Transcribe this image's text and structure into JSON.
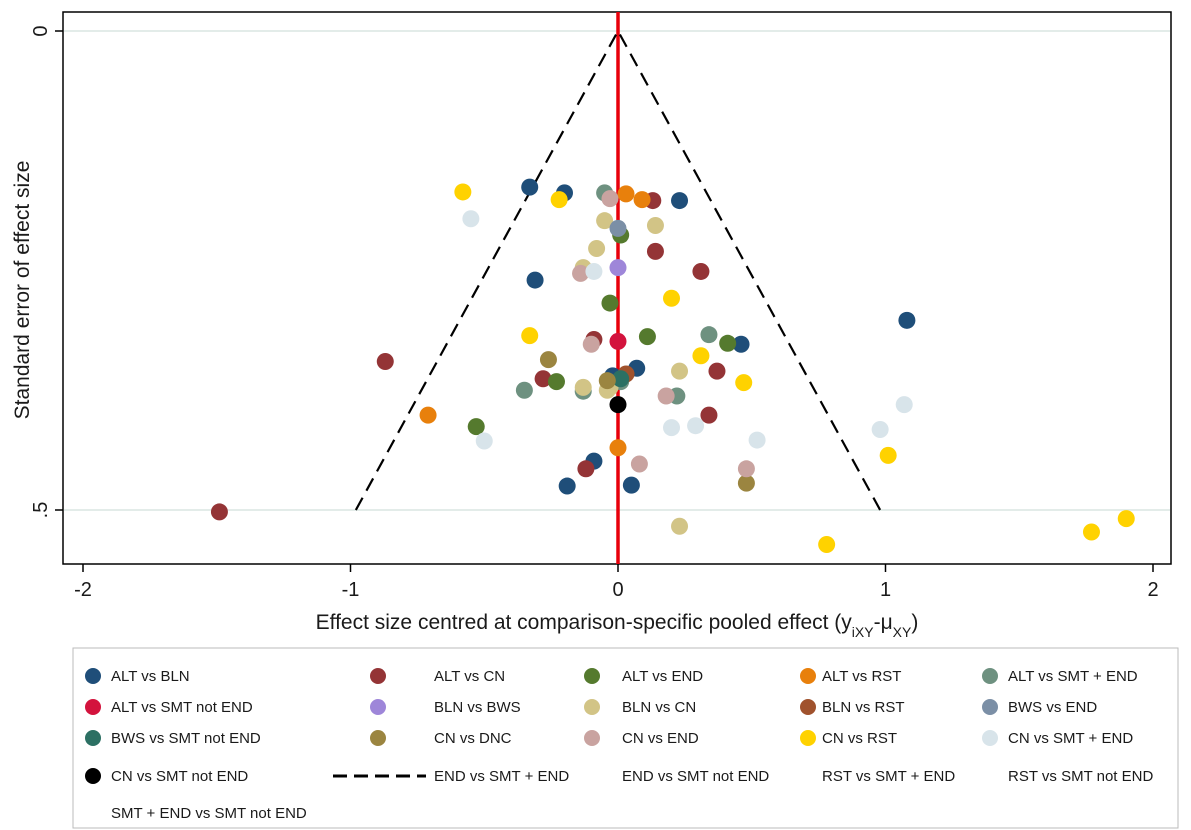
{
  "chart_data": {
    "type": "scatter",
    "xlabel": "Effect size centred at comparison-specific pooled effect (y",
    "xlabel_sub1": "iXY",
    "xlabel_mid": "-μ",
    "xlabel_sub2": "XY",
    "xlabel_end": ")",
    "ylabel": "Standard error of effect size",
    "xlim": [
      -2.1,
      2.1
    ],
    "ylim": [
      0,
      0.56
    ],
    "y_reversed": true,
    "xticks": [
      {
        "value": -2,
        "label": "-2"
      },
      {
        "value": -1,
        "label": "-1"
      },
      {
        "value": 0,
        "label": "0"
      },
      {
        "value": 1,
        "label": "1"
      },
      {
        "value": 2,
        "label": "2"
      }
    ],
    "yticks": [
      {
        "value": 0,
        "label": "0"
      },
      {
        "value": 0.5,
        "label": ".5"
      }
    ],
    "grid": "horizontal",
    "reference_line": {
      "x": 0,
      "color": "#e8000b"
    },
    "funnel": {
      "apex": [
        0,
        0
      ],
      "base_left": [
        -0.98,
        0.5
      ],
      "base_right": [
        0.98,
        0.5
      ],
      "style": "dashed"
    },
    "legend_position": "bottom",
    "series": [
      {
        "name": "ALT vs BLN",
        "color": "#1f4e79",
        "points": [
          [
            -0.33,
            0.163
          ],
          [
            -0.2,
            0.169
          ],
          [
            0.23,
            0.177
          ],
          [
            -0.31,
            0.26
          ],
          [
            1.08,
            0.302
          ],
          [
            0.46,
            0.327
          ],
          [
            0.07,
            0.352
          ],
          [
            -0.09,
            0.449
          ],
          [
            -0.19,
            0.475
          ],
          [
            0.05,
            0.474
          ],
          [
            -0.02,
            0.36
          ]
        ]
      },
      {
        "name": "ALT vs CN",
        "color": "#943436",
        "points": [
          [
            0.13,
            0.177
          ],
          [
            0.14,
            0.23
          ],
          [
            0.31,
            0.251
          ],
          [
            -0.09,
            0.322
          ],
          [
            -0.87,
            0.345
          ],
          [
            -0.28,
            0.363
          ],
          [
            0.37,
            0.355
          ],
          [
            0.34,
            0.401
          ],
          [
            -0.12,
            0.457
          ],
          [
            -1.49,
            0.502
          ]
        ]
      },
      {
        "name": "ALT vs END",
        "color": "#557a2e",
        "points": [
          [
            0.01,
            0.213
          ],
          [
            -0.03,
            0.284
          ],
          [
            0.11,
            0.319
          ],
          [
            0.41,
            0.326
          ],
          [
            -0.23,
            0.366
          ],
          [
            -0.53,
            0.413
          ]
        ]
      },
      {
        "name": "ALT vs RST",
        "color": "#e8800c",
        "points": [
          [
            0.03,
            0.17
          ],
          [
            0.09,
            0.176
          ],
          [
            -0.71,
            0.401
          ],
          [
            0,
            0.435
          ]
        ]
      },
      {
        "name": "ALT vs SMT + END",
        "color": "#6e9180",
        "points": [
          [
            -0.05,
            0.169
          ],
          [
            0.34,
            0.317
          ],
          [
            -0.35,
            0.375
          ],
          [
            -0.13,
            0.376
          ],
          [
            0.22,
            0.381
          ],
          [
            0.01,
            0.366
          ]
        ]
      },
      {
        "name": "ALT vs SMT not END",
        "color": "#d3133d",
        "points": [
          [
            0,
            0.324
          ]
        ]
      },
      {
        "name": "BLN vs BWS",
        "color": "#9e86d9",
        "points": [
          [
            0,
            0.247
          ]
        ]
      },
      {
        "name": "BLN vs CN",
        "color": "#d2c486",
        "points": [
          [
            -0.05,
            0.198
          ],
          [
            0.14,
            0.203
          ],
          [
            -0.08,
            0.227
          ],
          [
            -0.13,
            0.247
          ],
          [
            0.23,
            0.355
          ],
          [
            -0.13,
            0.372
          ],
          [
            -0.04,
            0.375
          ],
          [
            -0.03,
            0.372
          ],
          [
            0.23,
            0.517
          ]
        ]
      },
      {
        "name": "BLN vs RST",
        "color": "#a0522d",
        "points": [
          [
            0.03,
            0.358
          ]
        ]
      },
      {
        "name": "BWS vs END",
        "color": "#7b8fa6",
        "points": [
          [
            0,
            0.206
          ]
        ]
      },
      {
        "name": "BWS vs SMT not END",
        "color": "#2c7063",
        "points": [
          [
            0.01,
            0.363
          ]
        ]
      },
      {
        "name": "CN vs DNC",
        "color": "#9b8540",
        "points": [
          [
            -0.26,
            0.343
          ],
          [
            -0.04,
            0.365
          ],
          [
            0.48,
            0.472
          ]
        ]
      },
      {
        "name": "CN vs END",
        "color": "#c9a3a0",
        "points": [
          [
            -0.03,
            0.175
          ],
          [
            -0.14,
            0.253
          ],
          [
            -0.1,
            0.327
          ],
          [
            0.18,
            0.381
          ],
          [
            0.08,
            0.452
          ],
          [
            0.48,
            0.457
          ]
        ]
      },
      {
        "name": "CN vs RST",
        "color": "#ffd200",
        "points": [
          [
            -0.58,
            0.168
          ],
          [
            -0.22,
            0.176
          ],
          [
            0.2,
            0.279
          ],
          [
            -0.33,
            0.318
          ],
          [
            0.31,
            0.339
          ],
          [
            0.47,
            0.367
          ],
          [
            1.01,
            0.443
          ],
          [
            0.78,
            0.536
          ],
          [
            1.77,
            0.523
          ],
          [
            1.9,
            0.509
          ]
        ]
      },
      {
        "name": "CN vs SMT + END",
        "color": "#d8e4ea",
        "points": [
          [
            -0.55,
            0.196
          ],
          [
            -0.09,
            0.251
          ],
          [
            1.07,
            0.39
          ],
          [
            0.29,
            0.412
          ],
          [
            0.98,
            0.416
          ],
          [
            0.2,
            0.414
          ],
          [
            0.52,
            0.427
          ],
          [
            -0.5,
            0.428
          ]
        ]
      },
      {
        "name": "CN vs SMT not END",
        "color": "#000000",
        "points": [
          [
            0,
            0.39
          ]
        ]
      },
      {
        "name": "END vs SMT + END",
        "color": "#000000",
        "points": [],
        "line_style": "dashed"
      },
      {
        "name": "END vs SMT not END",
        "color": "#000000",
        "points": []
      },
      {
        "name": "RST vs SMT + END",
        "color": "#000000",
        "points": []
      },
      {
        "name": "RST vs SMT not END",
        "color": "#000000",
        "points": []
      },
      {
        "name": "SMT + END vs SMT not END",
        "color": "#000000",
        "points": []
      }
    ]
  }
}
